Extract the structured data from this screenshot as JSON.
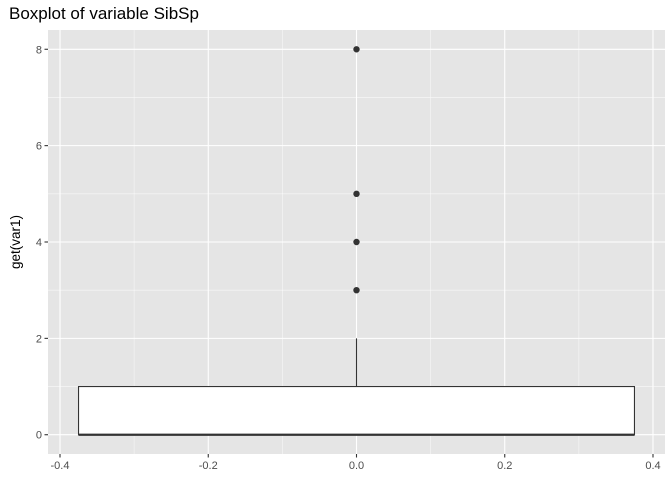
{
  "chart_data": {
    "type": "boxplot",
    "title": "Boxplot of variable SibSp",
    "xlabel": "",
    "ylabel": "get(var1)",
    "xlim": [
      -0.4,
      0.4
    ],
    "ylim": [
      0,
      8
    ],
    "x_ticks": [
      -0.4,
      -0.2,
      0.0,
      0.2,
      0.4
    ],
    "x_tick_labels": [
      "-0.4",
      "-0.2",
      "0.0",
      "0.2",
      "0.4"
    ],
    "y_ticks": [
      0,
      2,
      4,
      6,
      8
    ],
    "y_tick_labels": [
      "0",
      "2",
      "4",
      "6",
      "8"
    ],
    "grid": true,
    "legend": "none",
    "box": {
      "x_center": 0.0,
      "x_min": -0.375,
      "x_max": 0.375,
      "min": 0,
      "q1": 0,
      "median": 0,
      "q3": 1,
      "whisker_low": 0,
      "whisker_high": 2
    },
    "outliers": [
      {
        "x": 0.0,
        "y": 3
      },
      {
        "x": 0.0,
        "y": 4
      },
      {
        "x": 0.0,
        "y": 5
      },
      {
        "x": 0.0,
        "y": 8
      }
    ],
    "colors": {
      "panel_background": "#e5e5e5",
      "grid_major": "#ffffff",
      "box_fill": "#ffffff",
      "box_line": "#333333",
      "outlier": "#333333"
    }
  }
}
